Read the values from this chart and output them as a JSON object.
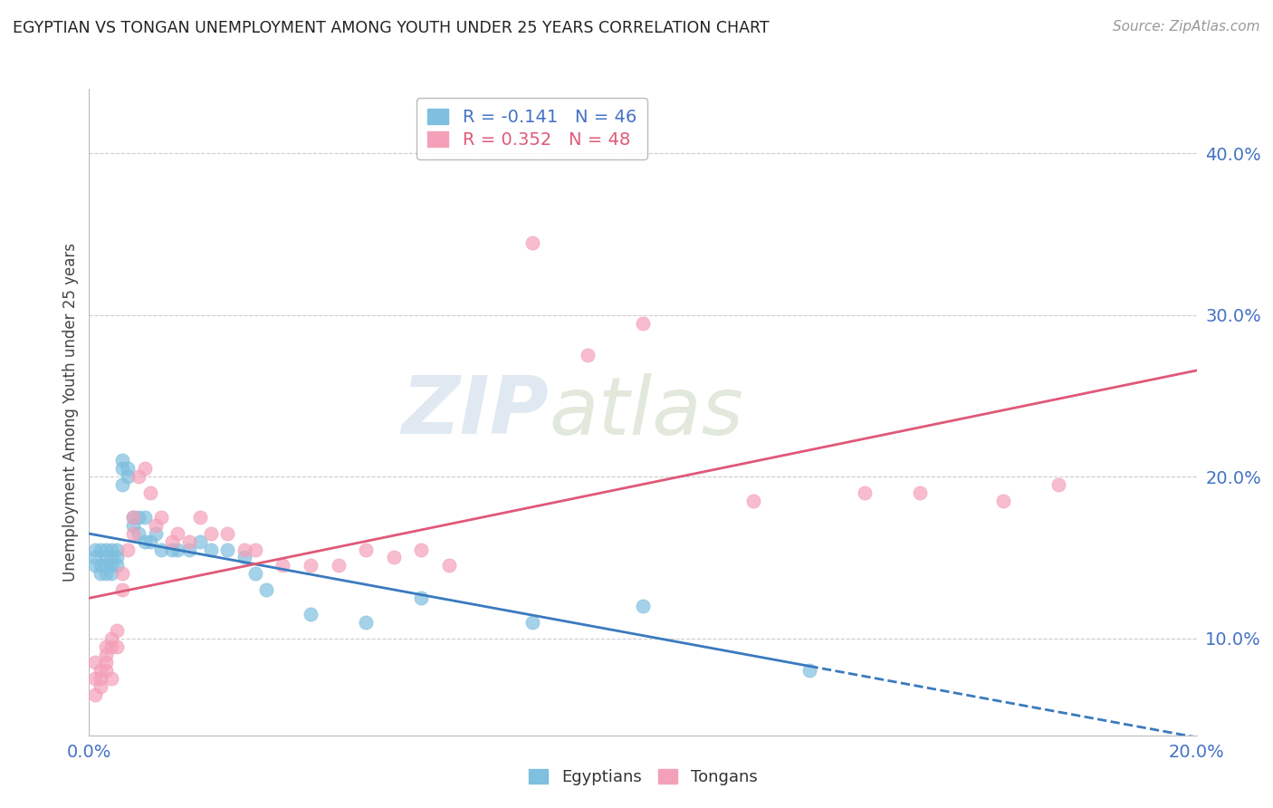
{
  "title": "EGYPTIAN VS TONGAN UNEMPLOYMENT AMONG YOUTH UNDER 25 YEARS CORRELATION CHART",
  "source": "Source: ZipAtlas.com",
  "ylabel": "Unemployment Among Youth under 25 years",
  "ytick_values": [
    0.1,
    0.2,
    0.3,
    0.4
  ],
  "xlim": [
    0.0,
    0.2
  ],
  "ylim": [
    0.04,
    0.44
  ],
  "legend_entry1": "R = -0.141   N = 46",
  "legend_entry2": "R = 0.352   N = 48",
  "legend_label1": "Egyptians",
  "legend_label2": "Tongans",
  "color_egyptian": "#7fbfdf",
  "color_tongan": "#f4a0b8",
  "color_line_egyptian": "#3a7abf",
  "color_line_tongan": "#e05878",
  "watermark_zip": "ZIP",
  "watermark_atlas": "atlas",
  "egyptian_x": [
    0.001,
    0.001,
    0.001,
    0.002,
    0.002,
    0.002,
    0.003,
    0.003,
    0.003,
    0.003,
    0.004,
    0.004,
    0.004,
    0.004,
    0.005,
    0.005,
    0.005,
    0.006,
    0.006,
    0.006,
    0.007,
    0.007,
    0.008,
    0.008,
    0.009,
    0.009,
    0.01,
    0.01,
    0.011,
    0.012,
    0.013,
    0.015,
    0.016,
    0.018,
    0.02,
    0.022,
    0.025,
    0.028,
    0.03,
    0.032,
    0.04,
    0.05,
    0.06,
    0.08,
    0.1,
    0.13
  ],
  "egyptian_y": [
    0.155,
    0.145,
    0.15,
    0.155,
    0.145,
    0.14,
    0.15,
    0.155,
    0.145,
    0.14,
    0.155,
    0.15,
    0.145,
    0.14,
    0.155,
    0.15,
    0.145,
    0.21,
    0.205,
    0.195,
    0.205,
    0.2,
    0.175,
    0.17,
    0.175,
    0.165,
    0.175,
    0.16,
    0.16,
    0.165,
    0.155,
    0.155,
    0.155,
    0.155,
    0.16,
    0.155,
    0.155,
    0.15,
    0.14,
    0.13,
    0.115,
    0.11,
    0.125,
    0.11,
    0.12,
    0.08
  ],
  "tongan_x": [
    0.001,
    0.001,
    0.001,
    0.002,
    0.002,
    0.002,
    0.003,
    0.003,
    0.003,
    0.003,
    0.004,
    0.004,
    0.004,
    0.005,
    0.005,
    0.006,
    0.006,
    0.007,
    0.008,
    0.008,
    0.009,
    0.01,
    0.011,
    0.012,
    0.013,
    0.015,
    0.016,
    0.018,
    0.02,
    0.022,
    0.025,
    0.028,
    0.03,
    0.035,
    0.04,
    0.045,
    0.05,
    0.055,
    0.06,
    0.065,
    0.08,
    0.09,
    0.1,
    0.12,
    0.14,
    0.15,
    0.165,
    0.175
  ],
  "tongan_y": [
    0.075,
    0.065,
    0.085,
    0.08,
    0.075,
    0.07,
    0.095,
    0.09,
    0.085,
    0.08,
    0.1,
    0.095,
    0.075,
    0.105,
    0.095,
    0.14,
    0.13,
    0.155,
    0.175,
    0.165,
    0.2,
    0.205,
    0.19,
    0.17,
    0.175,
    0.16,
    0.165,
    0.16,
    0.175,
    0.165,
    0.165,
    0.155,
    0.155,
    0.145,
    0.145,
    0.145,
    0.155,
    0.15,
    0.155,
    0.145,
    0.345,
    0.275,
    0.295,
    0.185,
    0.19,
    0.19,
    0.185,
    0.195
  ]
}
